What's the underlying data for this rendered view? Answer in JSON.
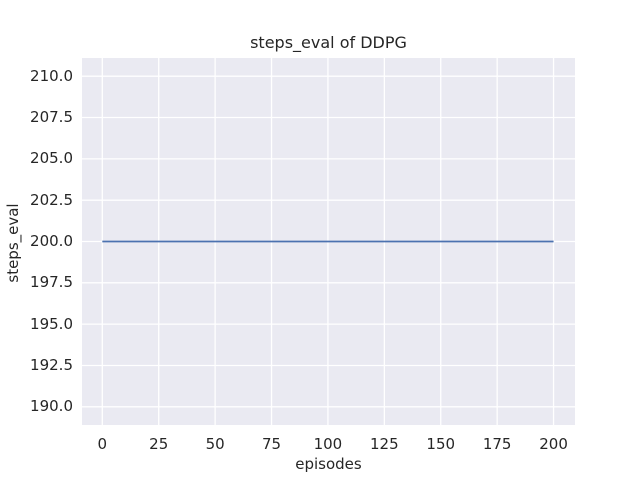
{
  "figure": {
    "background": "#ffffff"
  },
  "chart_data": {
    "type": "line",
    "title": "steps_eval of DDPG",
    "xlabel": "episodes",
    "ylabel": "steps_eval",
    "xlim": [
      -9,
      209.5
    ],
    "ylim": [
      188.9,
      211.1
    ],
    "xticks": [
      0,
      25,
      50,
      75,
      100,
      125,
      150,
      175,
      200
    ],
    "xtick_labels": [
      "0",
      "25",
      "50",
      "75",
      "100",
      "125",
      "150",
      "175",
      "200"
    ],
    "yticks": [
      190.0,
      192.5,
      195.0,
      197.5,
      200.0,
      202.5,
      205.0,
      207.5,
      210.0
    ],
    "ytick_labels": [
      "190.0",
      "192.5",
      "195.0",
      "197.5",
      "200.0",
      "202.5",
      "205.0",
      "207.5",
      "210.0"
    ],
    "grid": true,
    "legend": "none",
    "plot_background": "#eaeaf2",
    "gridline_color": "#ffffff",
    "text_color": "#262626",
    "series": [
      {
        "name": "DDPG",
        "color": "#4c72b0",
        "linewidth": 1.8,
        "x": [
          0,
          200
        ],
        "y": [
          200,
          200
        ]
      }
    ]
  }
}
